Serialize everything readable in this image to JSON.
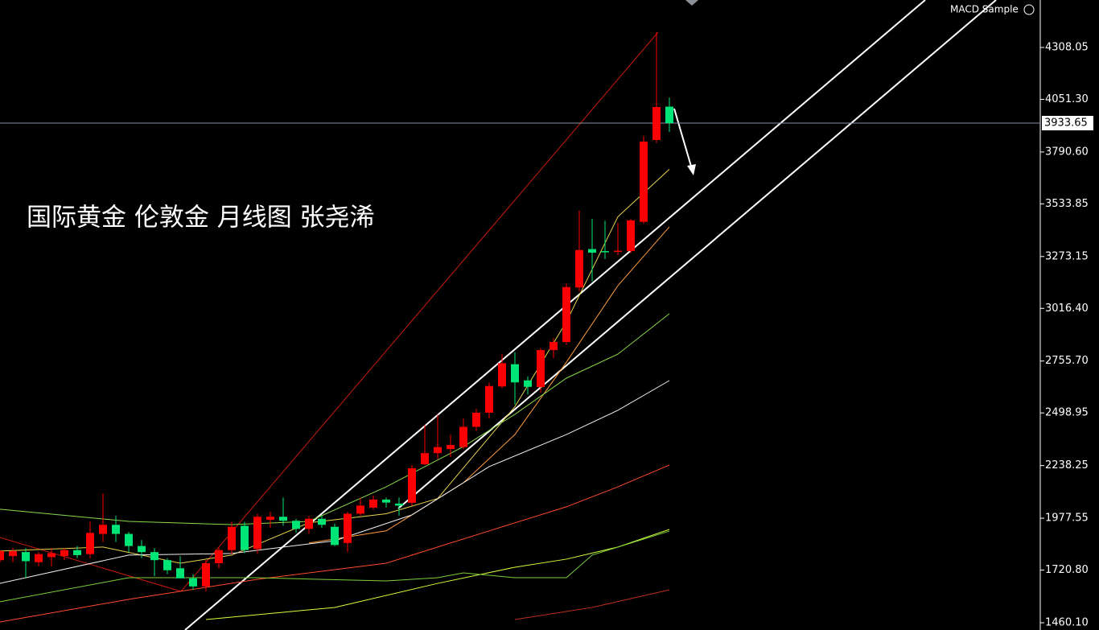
{
  "chart_data": {
    "type": "candlestick",
    "title": "国际黄金 伦敦金 月线图 张尧浠",
    "indicator": "MACD Sample",
    "last_price": 3933.65,
    "up_color": "#ff0000",
    "down_color": "#00e676",
    "ylim": [
      1424.25,
      4543
    ],
    "yticks": [
      {
        "value": 1460.1,
        "label": "1460.10"
      },
      {
        "value": 1720.8,
        "label": "1720.80"
      },
      1977.55,
      2238.25,
      2498.95,
      {
        "value": 2755.7,
        "label": "2755.70"
      },
      {
        "value": 3016.4,
        "label": "3016.40"
      },
      3273.15,
      3533.85,
      {
        "value": 3790.6,
        "label": "3790.60"
      },
      {
        "value": 4051.3,
        "label": "4051.30"
      },
      4308.05
    ],
    "categories": [
      null,
      null,
      null,
      null,
      null,
      null,
      null,
      null,
      null,
      null,
      null,
      null,
      null,
      null,
      null,
      null,
      null,
      null,
      null,
      null,
      null,
      null,
      null,
      null,
      null,
      null,
      null,
      null,
      null,
      null,
      null,
      null,
      null,
      null,
      null,
      null,
      null,
      null,
      null,
      null,
      null,
      null,
      null,
      null,
      null,
      null,
      null,
      null,
      null,
      null,
      null,
      null,
      null
    ],
    "open": [
      1770,
      1790,
      1810,
      1760,
      1785,
      1790,
      1820,
      1800,
      1900,
      1945,
      1900,
      1840,
      1810,
      1770,
      1730,
      1680,
      1640,
      1755,
      1820,
      1940,
      1825,
      1970,
      1985,
      1965,
      1925,
      1975,
      1935,
      1855,
      2000,
      2030,
      2070,
      2050,
      2054,
      2245,
      2300,
      2320,
      2330,
      2430,
      2500,
      2630,
      2740,
      2660,
      2627,
      2810,
      2850,
      3120,
      3310,
      3300,
      3296,
      3300,
      3445,
      3850,
      4015
    ],
    "high": [
      1820,
      1830,
      1830,
      1810,
      1830,
      1830,
      1840,
      1960,
      2100,
      1990,
      1910,
      1870,
      1830,
      1780,
      1790,
      1700,
      1770,
      1830,
      1960,
      1960,
      2000,
      2010,
      2080,
      1975,
      1990,
      1990,
      1950,
      2010,
      2080,
      2090,
      2080,
      2080,
      2240,
      2440,
      2490,
      2390,
      2470,
      2520,
      2650,
      2790,
      2800,
      2680,
      2820,
      2870,
      3140,
      3500,
      3460,
      3450,
      3440,
      3460,
      3870,
      4383,
      4060
    ],
    "low": [
      1760,
      1760,
      1680,
      1740,
      1740,
      1770,
      1780,
      1780,
      1860,
      1860,
      1810,
      1780,
      1690,
      1700,
      1680,
      1625,
      1615,
      1730,
      1800,
      1805,
      1800,
      1930,
      1940,
      1905,
      1900,
      1930,
      1840,
      1810,
      1990,
      2020,
      2030,
      1990,
      2040,
      2240,
      2270,
      2280,
      2320,
      2410,
      2470,
      2620,
      2540,
      2590,
      2600,
      2770,
      2835,
      3100,
      3150,
      3260,
      3280,
      3290,
      3435,
      3835,
      3890
    ],
    "close": [
      1815,
      1815,
      1765,
      1800,
      1805,
      1820,
      1795,
      1905,
      1945,
      1900,
      1840,
      1810,
      1770,
      1720,
      1680,
      1640,
      1755,
      1820,
      1935,
      1820,
      1985,
      1985,
      1965,
      1925,
      1975,
      1945,
      1845,
      2000,
      2040,
      2070,
      2055,
      2040,
      2225,
      2300,
      2330,
      2340,
      2430,
      2500,
      2632,
      2745,
      2650,
      2628,
      2810,
      2850,
      3122,
      3305,
      3292,
      3295,
      3302,
      3452,
      3842,
      4013,
      3933.65
    ],
    "overlays": [
      {
        "color": "#e8d44d",
        "x": [
          0,
          8,
          14,
          18,
          24,
          30,
          34,
          40,
          44,
          48,
          52
        ],
        "values": [
          1815,
          1835,
          1755,
          1795,
          1955,
          2000,
          2075,
          2530,
          2950,
          3470,
          3705
        ]
      },
      {
        "color": "#ff9a3c",
        "x": [
          24,
          30,
          36,
          40,
          44,
          48,
          52
        ],
        "values": [
          1855,
          1915,
          2153,
          2392,
          2750,
          3129,
          3420
        ]
      },
      {
        "color": "#8bd94a",
        "x": [
          0,
          10,
          18,
          24,
          30,
          36,
          40,
          44,
          48,
          52
        ],
        "values": [
          2022,
          1962,
          1946,
          1962,
          2133,
          2332,
          2492,
          2671,
          2790,
          2990
        ]
      },
      {
        "color": "#f0f0f0",
        "x": [
          0,
          10,
          18,
          26,
          32,
          38,
          44,
          48,
          52
        ],
        "values": [
          1655,
          1795,
          1803,
          1866,
          1994,
          2233,
          2392,
          2512,
          2659
        ]
      },
      {
        "color": "#ff4a2a",
        "x": [
          0,
          10,
          20,
          30,
          38,
          44,
          48,
          52
        ],
        "values": [
          1464,
          1576,
          1675,
          1755,
          1915,
          2034,
          2133,
          2241
        ]
      },
      {
        "color": "#d4ff3a",
        "x": [
          16,
          26,
          34,
          40,
          44,
          48,
          52
        ],
        "values": [
          1476,
          1536,
          1655,
          1735,
          1775,
          1835,
          1922
        ]
      },
      {
        "color": "#7ccf3a",
        "x": [
          0,
          10,
          20,
          30,
          34,
          36,
          40,
          44,
          46,
          52
        ],
        "values": [
          1564,
          1683,
          1683,
          1667,
          1683,
          1707,
          1683,
          1683,
          1795,
          1914
        ]
      },
      {
        "color": "#c0301e",
        "x": [
          40,
          46,
          52
        ],
        "values": [
          1476,
          1536,
          1623
        ]
      }
    ]
  }
}
